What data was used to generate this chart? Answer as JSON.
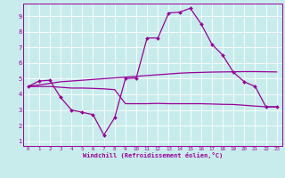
{
  "xlabel": "Windchill (Refroidissement éolien,°C)",
  "bg_color": "#c8ecec",
  "line_color": "#990099",
  "grid_color": "#ffffff",
  "xlim": [
    -0.5,
    23.5
  ],
  "ylim": [
    0.7,
    9.8
  ],
  "yticks": [
    1,
    2,
    3,
    4,
    5,
    6,
    7,
    8,
    9
  ],
  "xticks": [
    0,
    1,
    2,
    3,
    4,
    5,
    6,
    7,
    8,
    9,
    10,
    11,
    12,
    13,
    14,
    15,
    16,
    17,
    18,
    19,
    20,
    21,
    22,
    23
  ],
  "line1_x": [
    0,
    1,
    2,
    3,
    4,
    5,
    6,
    7,
    8,
    9,
    10,
    11,
    12,
    13,
    14,
    15,
    16,
    17,
    18,
    19,
    20,
    21,
    22,
    23
  ],
  "line1_y": [
    4.5,
    4.85,
    4.9,
    3.8,
    3.0,
    2.85,
    2.7,
    1.4,
    2.5,
    5.0,
    5.05,
    7.6,
    7.6,
    9.2,
    9.25,
    9.5,
    8.5,
    7.2,
    6.5,
    5.4,
    4.8,
    4.5,
    3.2,
    3.2
  ],
  "line2_x": [
    0,
    1,
    2,
    3,
    4,
    5,
    6,
    7,
    8,
    9,
    10,
    11,
    12,
    13,
    14,
    15,
    16,
    17,
    18,
    19,
    20,
    21,
    22,
    23
  ],
  "line2_y": [
    4.5,
    4.6,
    4.7,
    4.8,
    4.85,
    4.9,
    4.95,
    5.0,
    5.05,
    5.1,
    5.15,
    5.2,
    5.25,
    5.3,
    5.35,
    5.38,
    5.4,
    5.42,
    5.43,
    5.44,
    5.45,
    5.45,
    5.44,
    5.43
  ],
  "line3_x": [
    0,
    1,
    2,
    3,
    4,
    5,
    6,
    7,
    8,
    9,
    10,
    11,
    12,
    13,
    14,
    15,
    16,
    17,
    18,
    19,
    20,
    21,
    22,
    23
  ],
  "line3_y": [
    4.5,
    4.5,
    4.5,
    4.45,
    4.4,
    4.4,
    4.38,
    4.35,
    4.3,
    3.4,
    3.4,
    3.4,
    3.42,
    3.4,
    3.4,
    3.4,
    3.4,
    3.38,
    3.36,
    3.35,
    3.3,
    3.25,
    3.2,
    3.2
  ]
}
